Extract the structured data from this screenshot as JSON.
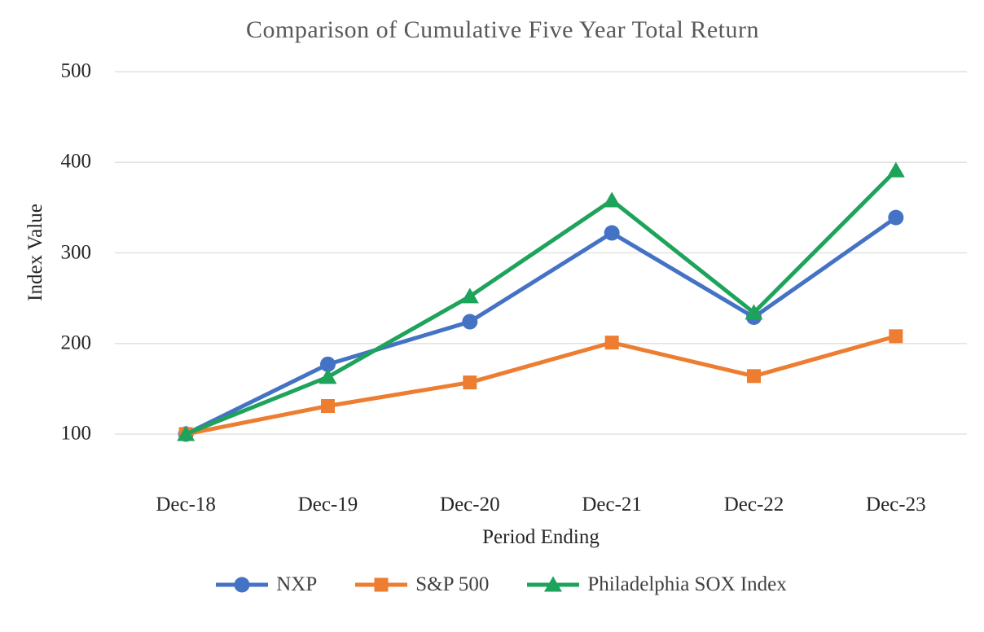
{
  "chart_data": {
    "type": "line",
    "title": "Comparison of Cumulative Five Year Total Return",
    "xlabel": "Period Ending",
    "ylabel": "Index Value",
    "categories": [
      "Dec-18",
      "Dec-19",
      "Dec-20",
      "Dec-21",
      "Dec-22",
      "Dec-23"
    ],
    "yticks": [
      100,
      200,
      300,
      400,
      500
    ],
    "ylim": [
      100,
      500
    ],
    "grid": "horizontal",
    "legend_position": "bottom",
    "gridline_color": "#e2e2e2",
    "series": [
      {
        "name": "NXP",
        "color": "#4472C4",
        "marker": "circle",
        "values": [
          100,
          177,
          224,
          322,
          229,
          339
        ]
      },
      {
        "name": "S&P 500",
        "color": "#ED7D31",
        "marker": "square",
        "values": [
          100,
          131,
          157,
          201,
          164,
          208
        ]
      },
      {
        "name": "Philadelphia SOX Index",
        "color": "#1EA35B",
        "marker": "triangle",
        "values": [
          100,
          163,
          252,
          358,
          234,
          391
        ]
      }
    ]
  }
}
